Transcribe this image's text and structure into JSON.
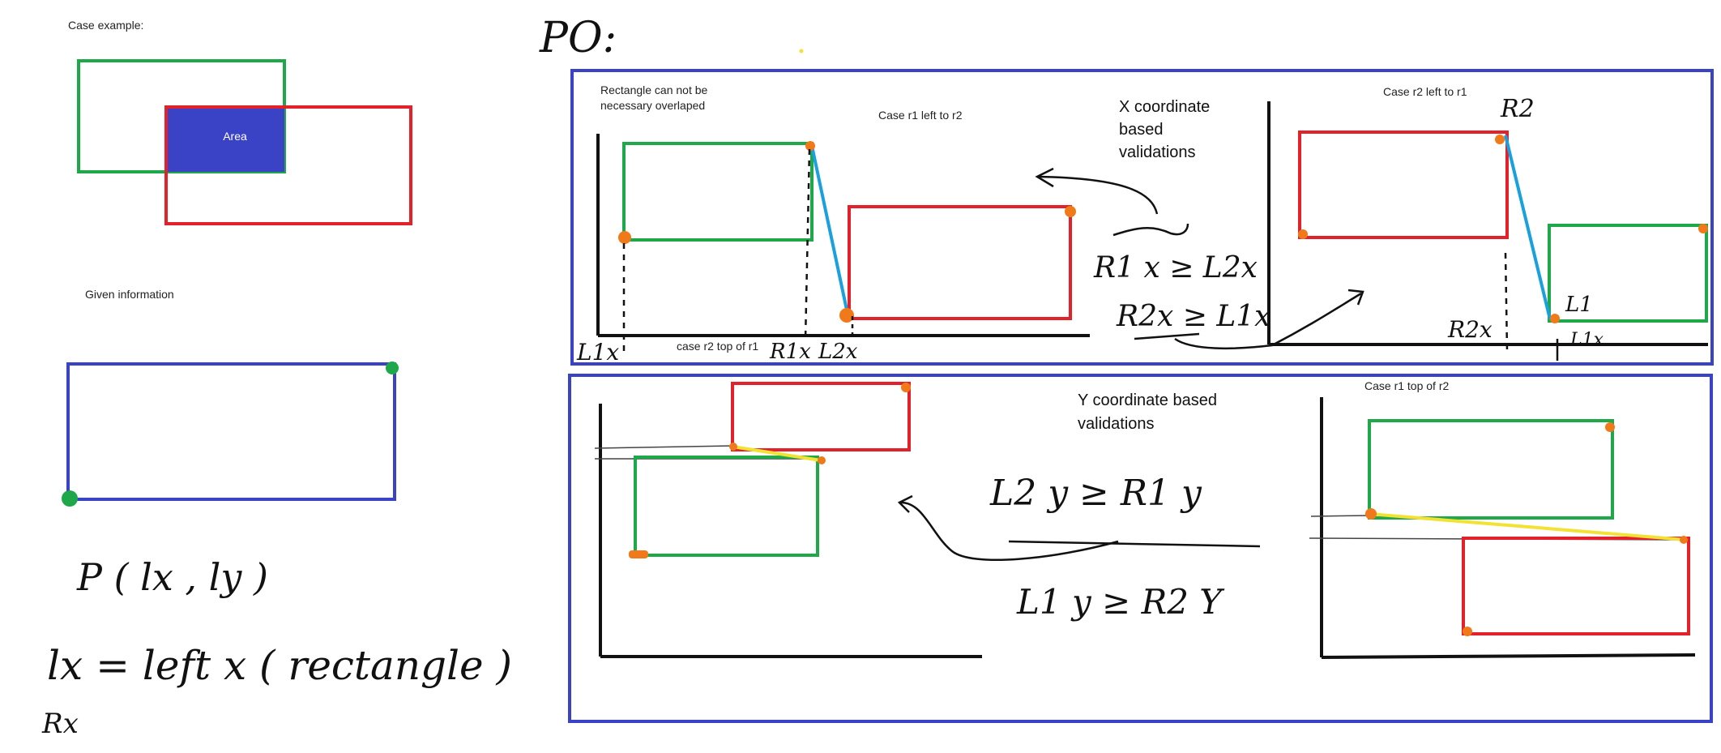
{
  "colors": {
    "green": "#1ea84a",
    "red": "#e2212b",
    "blue": "#3a43c6",
    "orange": "#f07a1a",
    "cyan": "#1aa0dc",
    "yellow": "#f2e233",
    "ink": "#111111"
  },
  "left": {
    "case_example": "Case example:",
    "area_label": "Area",
    "given_information": "Given information",
    "point_formula": "P ( lx , ly )",
    "lx_definition": "lx = left  x ( rectangle )",
    "rx_label": "Rx"
  },
  "header": {
    "po_label": "PO:"
  },
  "x_section": {
    "title": "X coordinate based validations",
    "title_line1": "X coordinate",
    "title_line2": "based",
    "title_line3": "validations",
    "note_line1": "Rectangle can not be",
    "note_line2": "necessary overlaped",
    "case_r1_left_r2": "Case r1 left to r2",
    "case_r2_top_r1": "case r2 top of r1",
    "axis_l1x": "L1x",
    "axis_r1x": "R1x",
    "axis_l2x": "L2x",
    "formula1": "R1 x ≥ L2x",
    "formula2": "R2x ≥ L1x",
    "case_r2_left_r1": "Case r2 left to r1",
    "r2_label": "R2",
    "r2x_label": "R2x",
    "l1_label": "L1",
    "l1x_label": "L1x"
  },
  "y_section": {
    "title_line1": "Y coordinate based",
    "title_line2": "validations",
    "formula1": "L2 y ≥  R1 y",
    "formula2": "L1 y ≥  R2 Y",
    "case_r1_top_r2": "Case r1 top of r2"
  }
}
